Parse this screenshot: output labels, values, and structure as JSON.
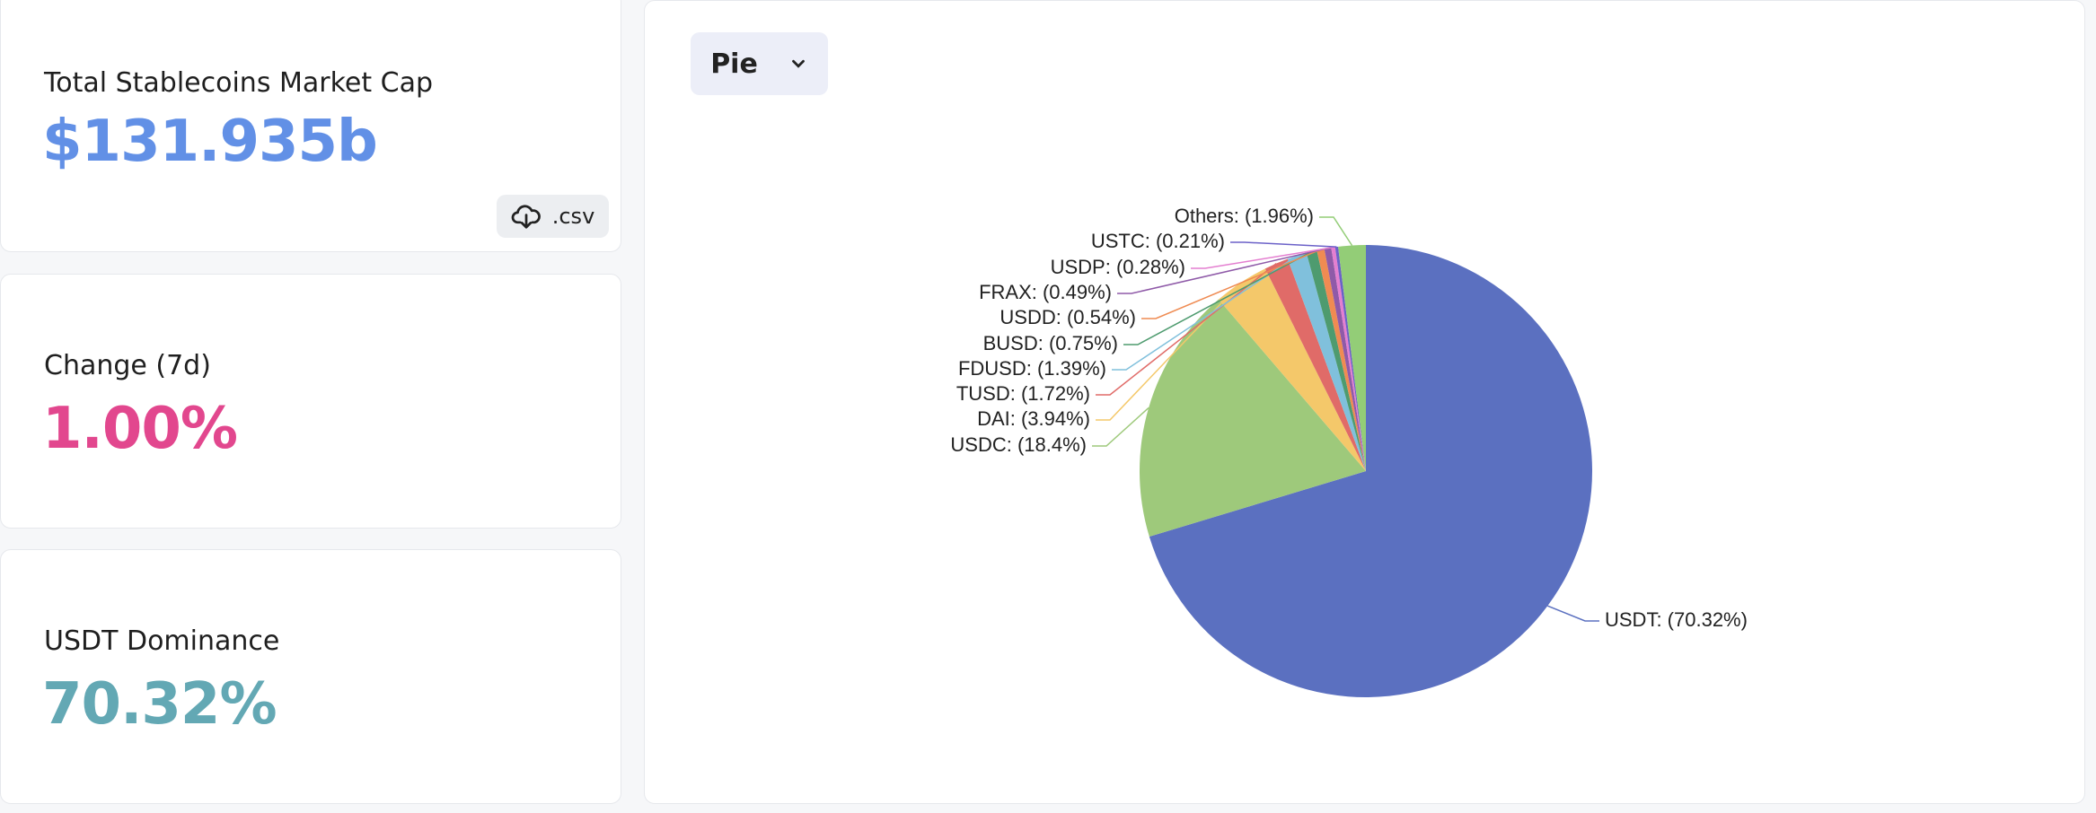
{
  "cards": [
    {
      "title": "Total Stablecoins Market Cap",
      "value": "$131.935b"
    },
    {
      "title": "Change (7d)",
      "value": "1.00%"
    },
    {
      "title": "USDT Dominance",
      "value": "70.32%"
    }
  ],
  "download": {
    "label": ".csv"
  },
  "dropdown": {
    "label": "Pie"
  },
  "chart_data": {
    "type": "pie",
    "values": [
      70.32,
      18.4,
      3.94,
      1.72,
      1.39,
      0.75,
      0.54,
      0.49,
      0.28,
      0.21,
      1.96
    ],
    "value_labels": [
      "USDT: (70.32%)",
      "USDC: (18.4%)",
      "DAI: (3.94%)",
      "TUSD: (1.72%)",
      "FDUSD: (1.39%)",
      "BUSD: (0.75%)",
      "USDD: (0.54%)",
      "FRAX: (0.49%)",
      "USDP: (0.28%)",
      "USTC: (0.21%)",
      "Others: (1.96%)"
    ],
    "colors": [
      "#5b70c0",
      "#9ec97b",
      "#f4c86a",
      "#e06b68",
      "#80c0dc",
      "#4e9b6f",
      "#ef8b52",
      "#8f5aa8",
      "#e47fd0",
      "#6b61c8",
      "#93cd77"
    ]
  }
}
